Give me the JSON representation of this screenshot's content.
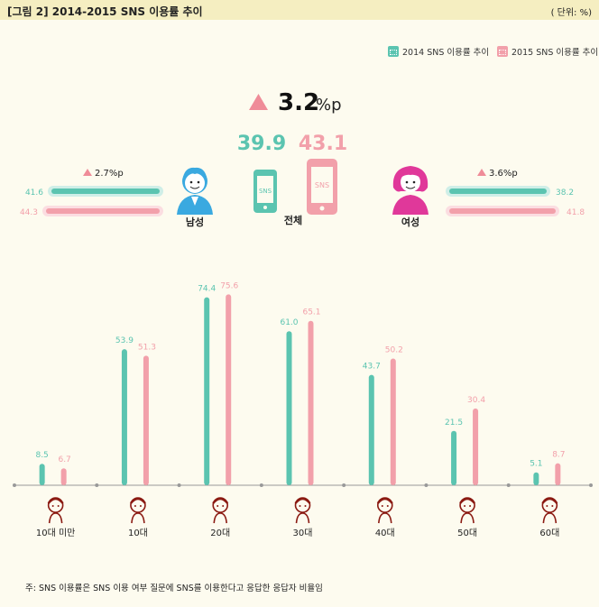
{
  "header": {
    "title": "[그림 2] 2014-2015 SNS 이용률 추이",
    "unit": "( 단위: %)"
  },
  "legend": [
    {
      "label": "2014 SNS 이용률 추이",
      "color": "#5bc4b0"
    },
    {
      "label": "2015 SNS 이용률 추이",
      "color": "#f2a0aa"
    }
  ],
  "colors": {
    "y2014": "#5bc4b0",
    "y2015": "#f2a0aa",
    "accent": "#ef8c98",
    "figure": "#8b1a12"
  },
  "summary": {
    "total": {
      "label": "전체",
      "increase": "3.2",
      "unit": "%p",
      "v2014": "39.9",
      "v2015": "43.1"
    },
    "male": {
      "label": "남성",
      "increase": "2.7%p",
      "v2014": "41.6",
      "v2015": "44.3"
    },
    "female": {
      "label": "여성",
      "increase": "3.6%p",
      "v2014": "38.2",
      "v2015": "41.8"
    }
  },
  "chart_data": {
    "type": "bar",
    "categories": [
      "10대 미만",
      "10대",
      "20대",
      "30대",
      "40대",
      "50대",
      "60대"
    ],
    "series": [
      {
        "name": "2014 SNS 이용률 추이",
        "values": [
          8.5,
          53.9,
          74.4,
          61.0,
          43.7,
          21.5,
          5.1
        ]
      },
      {
        "name": "2015 SNS 이용률 추이",
        "values": [
          6.7,
          51.3,
          75.6,
          65.1,
          50.2,
          30.4,
          8.7
        ]
      }
    ],
    "value_labels": [
      [
        "8.5",
        "53.9",
        "74.4",
        "61.0",
        "43.7",
        "21.5",
        "5.1"
      ],
      [
        "6.7",
        "51.3",
        "75.6",
        "65.1",
        "50.2",
        "30.4",
        "8.7"
      ]
    ],
    "ylim": [
      0,
      80
    ],
    "xlabel": "",
    "ylabel": ""
  },
  "footnote": "주: SNS 이용률은 SNS 이용 여부 질문에 SNS를 이용한다고 응답한 응답자 비율임"
}
